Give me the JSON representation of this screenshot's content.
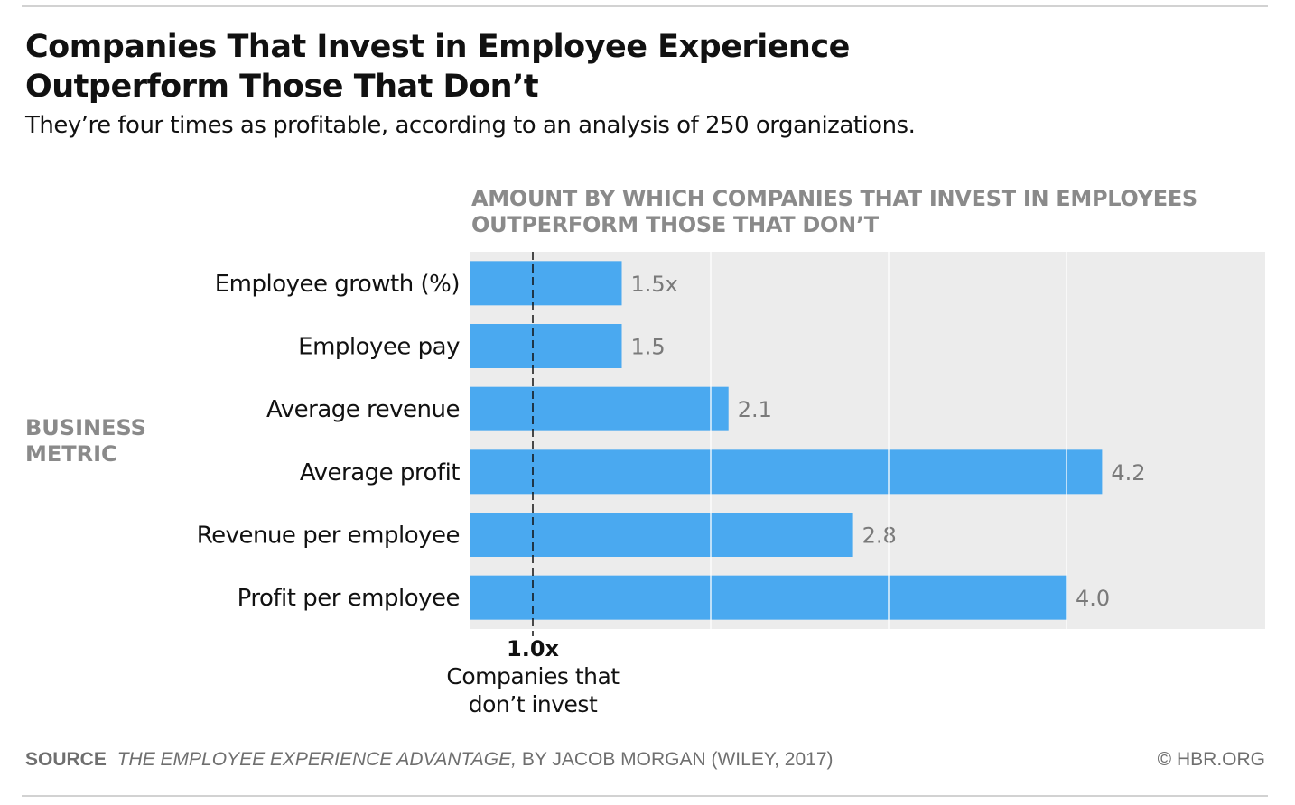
{
  "header": {
    "title_line1": "Companies That Invest in Employee Experience",
    "title_line2": "Outperform Those That Don’t",
    "subtitle": "They’re four times as profitable, according to an analysis of 250 organizations."
  },
  "chart_heading": {
    "line1": "AMOUNT BY WHICH COMPANIES THAT INVEST IN EMPLOYEES",
    "line2": "OUTPERFORM THOSE THAT DON’T"
  },
  "axis_title": {
    "line1": "BUSINESS",
    "line2": "METRIC"
  },
  "chart_data": {
    "type": "bar",
    "orientation": "horizontal",
    "title": "Companies That Invest in Employee Experience Outperform Those That Don’t",
    "xlabel": "AMOUNT BY WHICH COMPANIES THAT INVEST IN EMPLOYEES OUTPERFORM THOSE THAT DON’T",
    "ylabel": "BUSINESS METRIC",
    "categories": [
      "Employee growth (%)",
      "Employee pay",
      "Average revenue",
      "Average profit",
      "Revenue per employee",
      "Profit per employee"
    ],
    "values": [
      1.5,
      1.5,
      2.1,
      4.2,
      2.8,
      4.0
    ],
    "value_labels": [
      "1.5x",
      "1.5",
      "2.1",
      "4.2",
      "2.8",
      "4.0"
    ],
    "xlim": [
      0,
      4.2
    ],
    "gridlines": [
      2,
      3,
      4
    ],
    "reference": {
      "value": 1.0,
      "label": "1.0x",
      "caption_line1": "Companies that",
      "caption_line2": "don’t invest"
    },
    "colors": {
      "bar": "#4aa9f0",
      "plot_bg": "#ececec",
      "grid": "#ffffff",
      "value_label": "#7a7a7a",
      "reference_line": "#111111"
    }
  },
  "footer": {
    "source_label": "SOURCE",
    "source_book": "THE EMPLOYEE EXPERIENCE ADVANTAGE,",
    "source_rest": "BY JACOB MORGAN (WILEY, 2017)",
    "credit": "© HBR.ORG"
  }
}
